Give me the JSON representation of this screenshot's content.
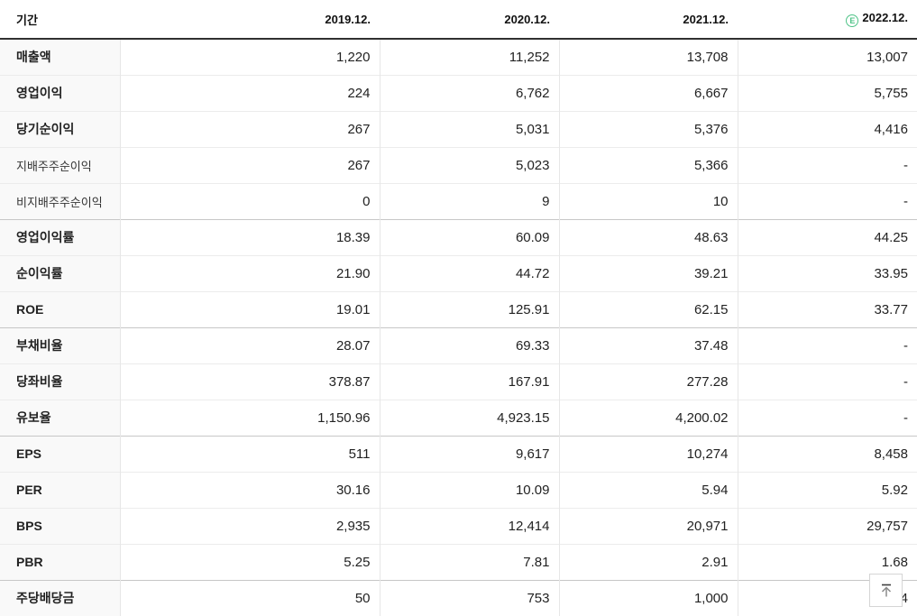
{
  "table": {
    "header": {
      "period_label": "기간",
      "columns": [
        "2019.12.",
        "2020.12.",
        "2021.12.",
        "2022.12."
      ],
      "estimate_badge": "E",
      "estimate_badge_color": "#4fc387"
    },
    "rows": [
      {
        "label": "매출액",
        "style": "main",
        "group_start": false,
        "values": [
          "1,220",
          "11,252",
          "13,708",
          "13,007"
        ]
      },
      {
        "label": "영업이익",
        "style": "main",
        "group_start": false,
        "values": [
          "224",
          "6,762",
          "6,667",
          "5,755"
        ]
      },
      {
        "label": "당기순이익",
        "style": "main",
        "group_start": false,
        "values": [
          "267",
          "5,031",
          "5,376",
          "4,416"
        ]
      },
      {
        "label": "지배주주순이익",
        "style": "sub",
        "group_start": false,
        "values": [
          "267",
          "5,023",
          "5,366",
          "-"
        ]
      },
      {
        "label": "비지배주주순이익",
        "style": "sub",
        "group_start": false,
        "values": [
          "0",
          "9",
          "10",
          "-"
        ]
      },
      {
        "label": "영업이익률",
        "style": "main",
        "group_start": true,
        "values": [
          "18.39",
          "60.09",
          "48.63",
          "44.25"
        ]
      },
      {
        "label": "순이익률",
        "style": "main",
        "group_start": false,
        "values": [
          "21.90",
          "44.72",
          "39.21",
          "33.95"
        ]
      },
      {
        "label": "ROE",
        "style": "main",
        "group_start": false,
        "values": [
          "19.01",
          "125.91",
          "62.15",
          "33.77"
        ]
      },
      {
        "label": "부채비율",
        "style": "main",
        "group_start": true,
        "values": [
          "28.07",
          "69.33",
          "37.48",
          "-"
        ]
      },
      {
        "label": "당좌비율",
        "style": "main",
        "group_start": false,
        "values": [
          "378.87",
          "167.91",
          "277.28",
          "-"
        ]
      },
      {
        "label": "유보율",
        "style": "main",
        "group_start": false,
        "values": [
          "1,150.96",
          "4,923.15",
          "4,200.02",
          "-"
        ]
      },
      {
        "label": "EPS",
        "style": "main",
        "group_start": true,
        "values": [
          "511",
          "9,617",
          "10,274",
          "8,458"
        ]
      },
      {
        "label": "PER",
        "style": "main",
        "group_start": false,
        "values": [
          "30.16",
          "10.09",
          "5.94",
          "5.92"
        ]
      },
      {
        "label": "BPS",
        "style": "main",
        "group_start": false,
        "values": [
          "2,935",
          "12,414",
          "20,971",
          "29,757"
        ]
      },
      {
        "label": "PBR",
        "style": "main",
        "group_start": false,
        "values": [
          "5.25",
          "7.81",
          "2.91",
          "1.68"
        ]
      },
      {
        "label": "주당배당금",
        "style": "main",
        "group_start": true,
        "values": [
          "50",
          "753",
          "1,000",
          "4"
        ]
      }
    ]
  },
  "scroll_top_button": {
    "icon": "arrow-up-to-top"
  },
  "colors": {
    "header_border": "#303030",
    "row_border": "#ececec",
    "group_border": "#c7c7c7",
    "column_border": "#e7e7e7",
    "label_column_bg": "#f9f9f9",
    "estimate_green": "#4fc387"
  }
}
